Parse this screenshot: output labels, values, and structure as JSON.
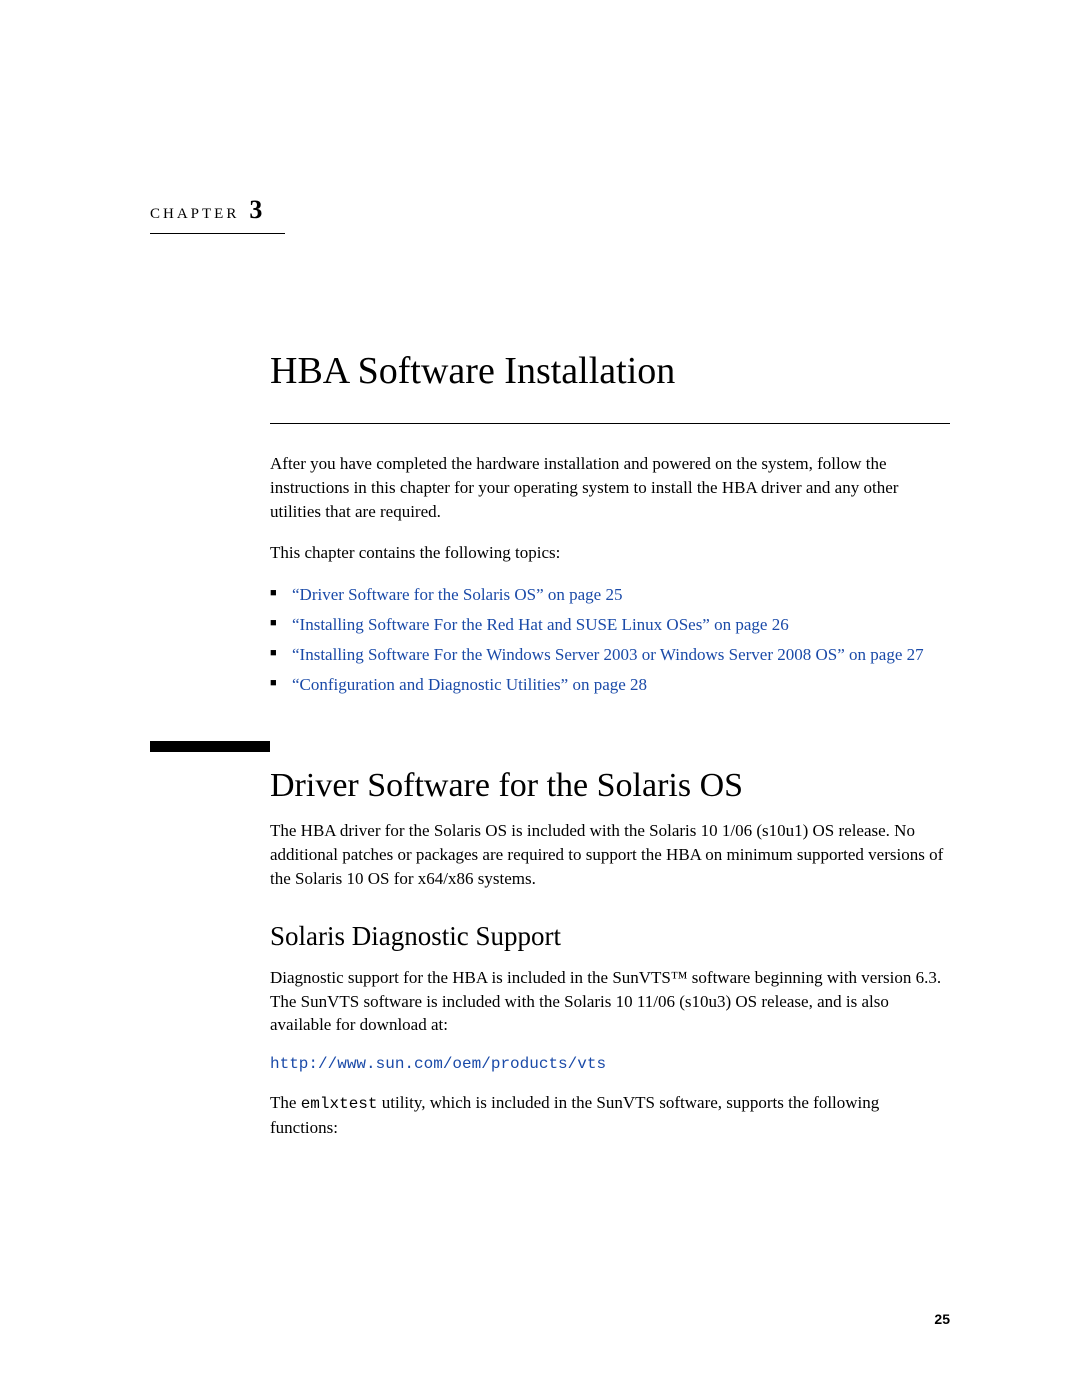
{
  "chapter": {
    "label": "CHAPTER",
    "number": "3"
  },
  "title": "HBA Software Installation",
  "intro": "After you have completed the hardware installation and powered on the system, follow the instructions in this chapter for your operating system to install the HBA driver and any other utilities that are required.",
  "topics_lead": "This chapter contains the following topics:",
  "topics": [
    "“Driver Software for the Solaris OS” on page 25",
    "“Installing Software For the Red Hat and SUSE Linux OSes” on page 26",
    "“Installing Software For the Windows Server 2003 or Windows Server 2008 OS” on page 27",
    "“Configuration and Diagnostic Utilities” on page 28"
  ],
  "section1": {
    "heading": "Driver Software for the Solaris OS",
    "para": "The HBA driver for the Solaris OS is included with the Solaris 10 1/06 (s10u1) OS release. No additional patches or packages are required to support the HBA on minimum supported versions of the Solaris 10 OS for x64/x86 systems."
  },
  "section2": {
    "heading": "Solaris Diagnostic Support",
    "para1": "Diagnostic support for the HBA is included in the SunVTS™ software beginning with version 6.3. The SunVTS software is included with the Solaris 10 11/06 (s10u3) OS release, and is also available for download at:",
    "url": "http://www.sun.com/oem/products/vts",
    "para2_pre": "The ",
    "para2_code": "emlxtest",
    "para2_post": " utility, which is included in the SunVTS software, supports the following functions:"
  },
  "page_number": "25",
  "colors": {
    "link": "#1a4aa8",
    "text": "#000000",
    "background": "#ffffff"
  }
}
